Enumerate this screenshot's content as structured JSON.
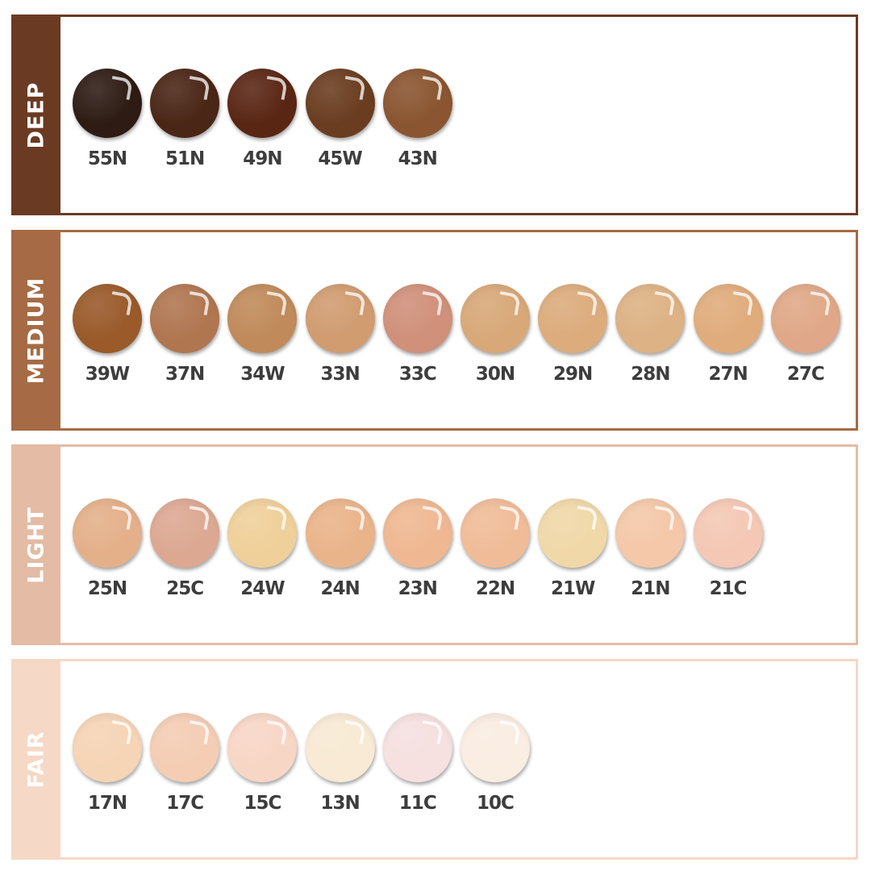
{
  "groups": [
    {
      "label": "DEEP",
      "color": "#6b3a22",
      "shades": [
        {
          "code": "55N",
          "color": "#2e1c14"
        },
        {
          "code": "51N",
          "color": "#4a2616"
        },
        {
          "code": "49N",
          "color": "#5a2614"
        },
        {
          "code": "45W",
          "color": "#6a3d20"
        },
        {
          "code": "43N",
          "color": "#8a5530"
        }
      ]
    },
    {
      "label": "MEDIUM",
      "color": "#a66b44",
      "shades": [
        {
          "code": "39W",
          "color": "#9a5a2a"
        },
        {
          "code": "37N",
          "color": "#b07650"
        },
        {
          "code": "34W",
          "color": "#c08a5a"
        },
        {
          "code": "33N",
          "color": "#d09c70"
        },
        {
          "code": "33C",
          "color": "#d0907a"
        },
        {
          "code": "30N",
          "color": "#d8a878"
        },
        {
          "code": "29N",
          "color": "#dcac7c"
        },
        {
          "code": "28N",
          "color": "#ddb284"
        },
        {
          "code": "27N",
          "color": "#e0ac7c"
        },
        {
          "code": "27C",
          "color": "#e0a888"
        }
      ]
    },
    {
      "label": "LIGHT",
      "color": "#e4bba4",
      "shades": [
        {
          "code": "25N",
          "color": "#e4b08a"
        },
        {
          "code": "25C",
          "color": "#dca892"
        },
        {
          "code": "24W",
          "color": "#f0d09a"
        },
        {
          "code": "24N",
          "color": "#eab48a"
        },
        {
          "code": "23N",
          "color": "#efb892"
        },
        {
          "code": "22N",
          "color": "#f0bc98"
        },
        {
          "code": "21W",
          "color": "#f0d8a8"
        },
        {
          "code": "21N",
          "color": "#f4c8a8"
        },
        {
          "code": "21C",
          "color": "#f4c8b4"
        }
      ]
    },
    {
      "label": "FAIR",
      "color": "#f6d8c6",
      "shades": [
        {
          "code": "17N",
          "color": "#f6d4b6"
        },
        {
          "code": "17C",
          "color": "#f4cdb4"
        },
        {
          "code": "15C",
          "color": "#f8d6c6"
        },
        {
          "code": "13N",
          "color": "#f8ead4"
        },
        {
          "code": "11C",
          "color": "#f6e0e0"
        },
        {
          "code": "10C",
          "color": "#faede2"
        }
      ]
    }
  ]
}
